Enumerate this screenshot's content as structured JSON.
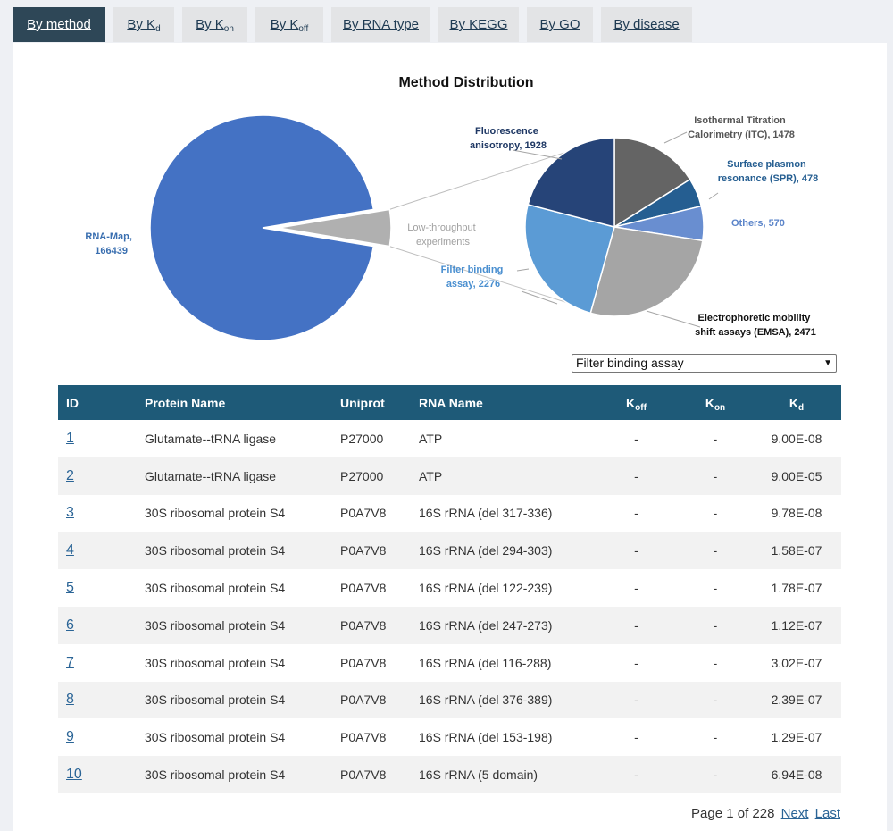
{
  "tabs": [
    {
      "label": "By method",
      "sub": ""
    },
    {
      "label": "By K",
      "sub": "d"
    },
    {
      "label": "By K",
      "sub": "on"
    },
    {
      "label": "By K",
      "sub": "off"
    },
    {
      "label": "By RNA type",
      "sub": ""
    },
    {
      "label": "By KEGG",
      "sub": ""
    },
    {
      "label": "By GO",
      "sub": ""
    },
    {
      "label": "By disease",
      "sub": ""
    }
  ],
  "chart_data": {
    "type": "pie",
    "title": "Method Distribution",
    "main": {
      "slices": [
        {
          "label": "RNA-Map, 166439",
          "value": 166439,
          "color": "#4472c4"
        },
        {
          "label": "Low-throughput experiments",
          "value": 9201,
          "color": "#b0b0b0"
        }
      ]
    },
    "detail": {
      "slices": [
        {
          "label": "Isothermal Titration Calorimetry (ITC), 1478",
          "value": 1478,
          "color": "#646464"
        },
        {
          "label": "Surface plasmon resonance (SPR), 478",
          "value": 478,
          "color": "#255e91"
        },
        {
          "label": "Others, 570",
          "value": 570,
          "color": "#698ed0"
        },
        {
          "label": "Electrophoretic mobility shift assays (EMSA), 2471",
          "value": 2471,
          "color": "#a5a5a5"
        },
        {
          "label": "Filter binding assay, 2276",
          "value": 2276,
          "color": "#5b9bd5"
        },
        {
          "label": "Fluorescence anisotropy, 1928",
          "value": 1928,
          "color": "#264478"
        }
      ]
    }
  },
  "filter": {
    "selected": "Filter binding assay"
  },
  "table": {
    "headers": [
      {
        "label": "ID",
        "sub": ""
      },
      {
        "label": "Protein Name",
        "sub": ""
      },
      {
        "label": "Uniprot",
        "sub": ""
      },
      {
        "label": "RNA Name",
        "sub": ""
      },
      {
        "label": "K",
        "sub": "off"
      },
      {
        "label": "K",
        "sub": "on"
      },
      {
        "label": "K",
        "sub": "d"
      }
    ],
    "rows": [
      {
        "id": "1",
        "protein": "Glutamate--tRNA ligase",
        "uniprot": "P27000",
        "rna": "ATP",
        "koff": "-",
        "kon": "-",
        "kd": "9.00E-08"
      },
      {
        "id": "2",
        "protein": "Glutamate--tRNA ligase",
        "uniprot": "P27000",
        "rna": "ATP",
        "koff": "-",
        "kon": "-",
        "kd": "9.00E-05"
      },
      {
        "id": "3",
        "protein": "30S ribosomal protein S4",
        "uniprot": "P0A7V8",
        "rna": "16S rRNA (del 317-336)",
        "koff": "-",
        "kon": "-",
        "kd": "9.78E-08"
      },
      {
        "id": "4",
        "protein": "30S ribosomal protein S4",
        "uniprot": "P0A7V8",
        "rna": "16S rRNA (del 294-303)",
        "koff": "-",
        "kon": "-",
        "kd": "1.58E-07"
      },
      {
        "id": "5",
        "protein": "30S ribosomal protein S4",
        "uniprot": "P0A7V8",
        "rna": "16S rRNA (del 122-239)",
        "koff": "-",
        "kon": "-",
        "kd": "1.78E-07"
      },
      {
        "id": "6",
        "protein": "30S ribosomal protein S4",
        "uniprot": "P0A7V8",
        "rna": "16S rRNA (del 247-273)",
        "koff": "-",
        "kon": "-",
        "kd": "1.12E-07"
      },
      {
        "id": "7",
        "protein": "30S ribosomal protein S4",
        "uniprot": "P0A7V8",
        "rna": "16S rRNA (del 116-288)",
        "koff": "-",
        "kon": "-",
        "kd": "3.02E-07"
      },
      {
        "id": "8",
        "protein": "30S ribosomal protein S4",
        "uniprot": "P0A7V8",
        "rna": "16S rRNA (del 376-389)",
        "koff": "-",
        "kon": "-",
        "kd": "2.39E-07"
      },
      {
        "id": "9",
        "protein": "30S ribosomal protein S4",
        "uniprot": "P0A7V8",
        "rna": "16S rRNA (del 153-198)",
        "koff": "-",
        "kon": "-",
        "kd": "1.29E-07"
      },
      {
        "id": "10",
        "protein": "30S ribosomal protein S4",
        "uniprot": "P0A7V8",
        "rna": "16S rRNA (5 domain)",
        "koff": "-",
        "kon": "-",
        "kd": "6.94E-08"
      }
    ]
  },
  "pager": {
    "status": "Page 1 of 228",
    "next": "Next",
    "last": "Last"
  }
}
